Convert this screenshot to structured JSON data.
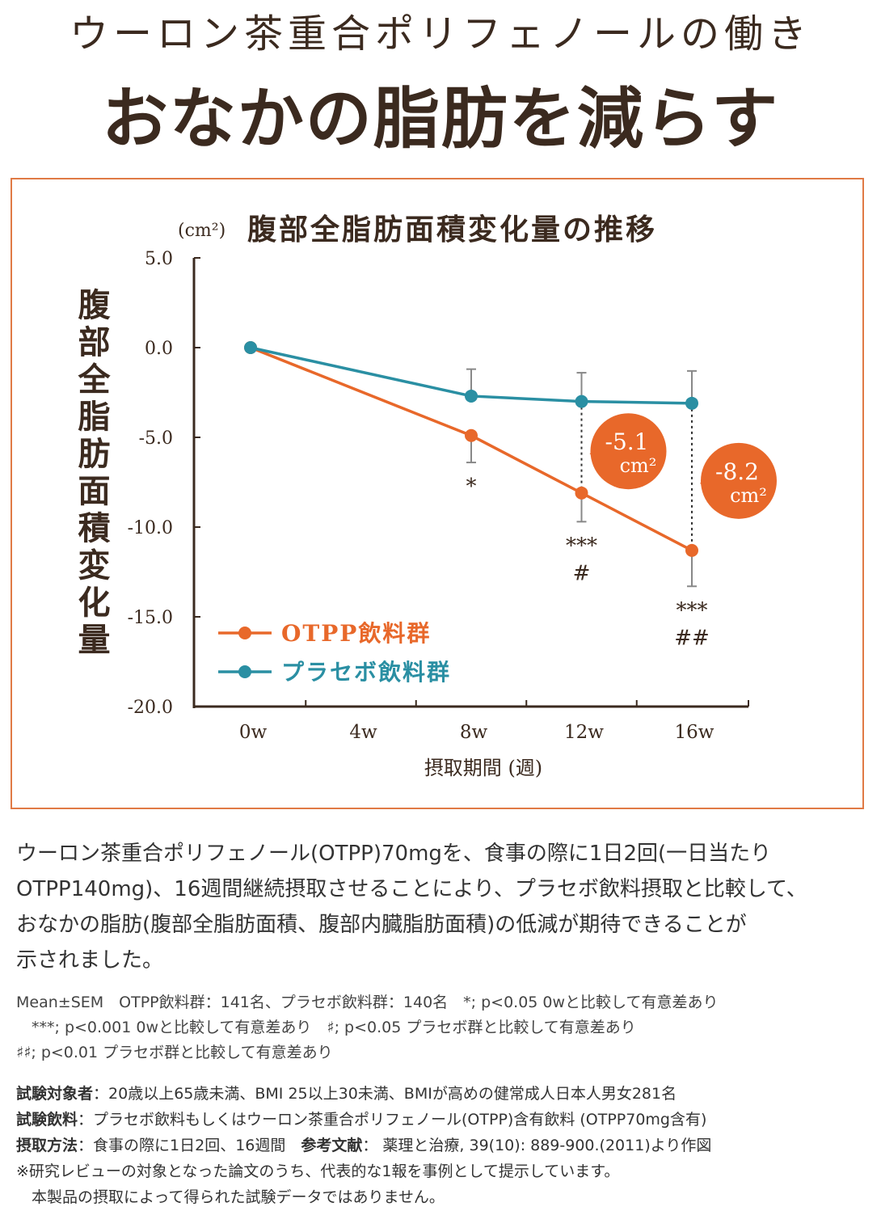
{
  "header": {
    "subtitle": "ウーロン茶重合ポリフェノールの働き",
    "title": "おなかの脂肪を減らす"
  },
  "colors": {
    "otpp": "#e8682a",
    "placebo": "#2a8fa3",
    "frame": "#e07a45",
    "text": "#3b2a1f"
  },
  "chart_data": {
    "type": "line",
    "title": "腹部全脂肪面積変化量の推移",
    "unit": "(cm²)",
    "ylabel": "腹部全脂肪面積変化量",
    "xlabel": "摂取期間 (週)",
    "ylim": [
      -20,
      5
    ],
    "yticks": [
      "5.0",
      "0.0",
      "-5.0",
      "-10.0",
      "-15.0",
      "-20.0"
    ],
    "ytick_values": [
      5,
      0,
      -5,
      -10,
      -15,
      -20
    ],
    "xticks": [
      "0w",
      "4w",
      "8w",
      "12w",
      "16w"
    ],
    "xtick_values": [
      0,
      4,
      8,
      12,
      16
    ],
    "legend_position": "bottom-left",
    "series": [
      {
        "name": "OTPP飲料群",
        "color": "#e8682a",
        "x": [
          0,
          8,
          12,
          16
        ],
        "values": [
          0,
          -4.9,
          -8.1,
          -11.3
        ],
        "sem": [
          0,
          1.5,
          1.6,
          2.0
        ]
      },
      {
        "name": "プラセボ飲料群",
        "color": "#2a8fa3",
        "x": [
          0,
          8,
          12,
          16
        ],
        "values": [
          0,
          -2.7,
          -3.0,
          -3.1
        ],
        "sem": [
          0,
          1.5,
          1.6,
          1.8
        ]
      }
    ],
    "significance": [
      {
        "x": 8,
        "label": "*",
        "label2": ""
      },
      {
        "x": 12,
        "label": "***",
        "label2": "#"
      },
      {
        "x": 16,
        "label": "***",
        "label2": "##"
      }
    ],
    "differences": [
      {
        "x": 12,
        "value": "-5.1",
        "unit": "cm²"
      },
      {
        "x": 16,
        "value": "-8.2",
        "unit": "cm²"
      }
    ]
  },
  "body": {
    "lines": [
      "ウーロン茶重合ポリフェノール(OTPP)70mgを、食事の際に1日2回(一日当たり",
      "OTPP140mg)、16週間継続摂取させることにより、プラセボ飲料摂取と比較して、",
      "おなかの脂肪(腹部全脂肪面積、腹部内臓脂肪面積)の低減が期待できることが",
      "示されました。"
    ]
  },
  "notes": {
    "lines": [
      "Mean±SEM　OTPP飲料群：141名、プラセボ飲料群：140名　*; p<0.05 0wと比較して有意差あり",
      "　***; p<0.001 0wと比較して有意差あり　♯; p<0.05 プラセボ群と比較して有意差あり",
      "♯♯; p<0.01 プラセボ群と比較して有意差あり"
    ]
  },
  "details": {
    "subjects_label": "試験対象者",
    "subjects": "：20歳以上65歳未満、BMI 25以上30未満、BMIが高めの健常成人日本人男女281名",
    "drink_label": "試験飲料",
    "drink": "：プラセボ飲料もしくはウーロン茶重合ポリフェノール(OTPP)含有飲料 (OTPP70mg含有)",
    "method_label": "摂取方法",
    "method": "：食事の際に1日2回、16週間　",
    "reference_label": "参考文献",
    "reference": "：  薬理と治療, 39(10): 889-900.(2011)より作図",
    "disclaimer1": "※研究レビューの対象となった論文のうち、代表的な1報を事例として提示しています。",
    "disclaimer2": "　本製品の摂取によって得られた試験データではありません。"
  }
}
